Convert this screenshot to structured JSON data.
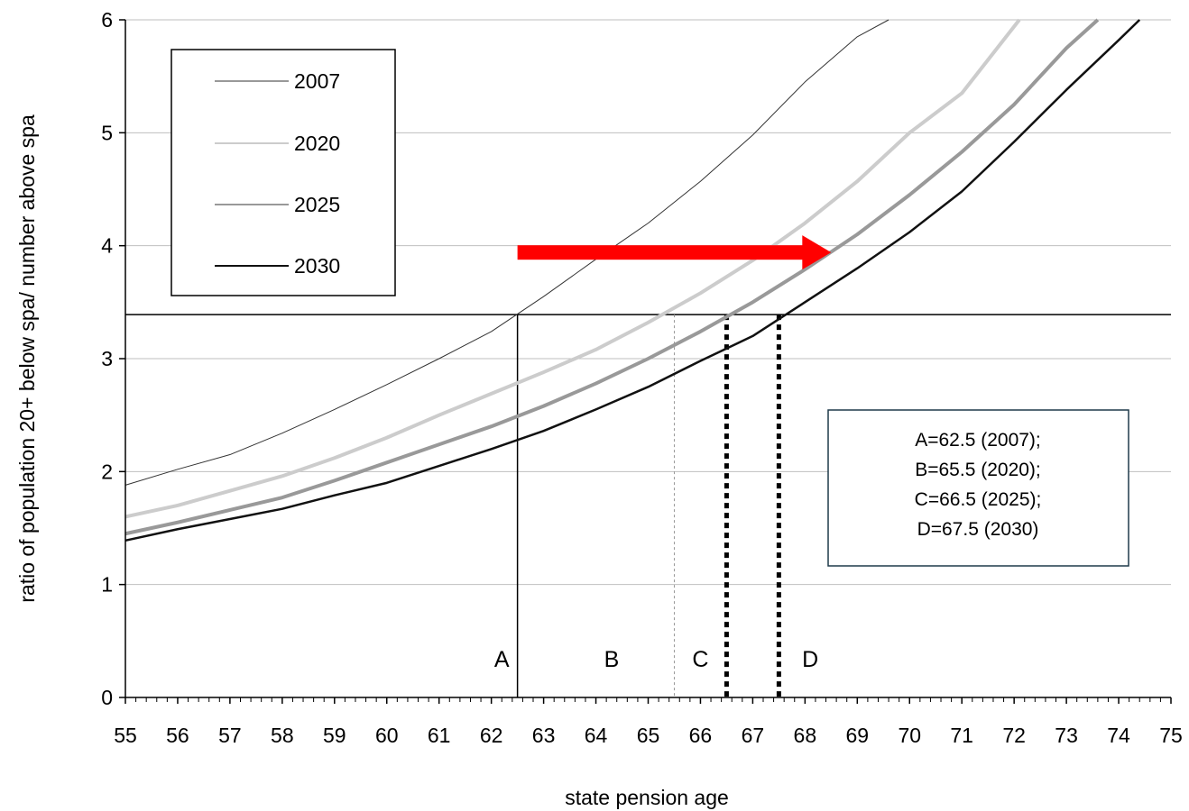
{
  "chart_data": {
    "type": "line",
    "xlabel": "state pension age",
    "ylabel": "ratio of population 20+ below spa/ number above spa",
    "xlim": [
      55,
      75
    ],
    "ylim": [
      0,
      6
    ],
    "x_ticks": [
      55,
      56,
      57,
      58,
      59,
      60,
      61,
      62,
      63,
      64,
      65,
      66,
      67,
      68,
      69,
      70,
      71,
      72,
      73,
      74,
      75
    ],
    "y_ticks": [
      0,
      1,
      2,
      3,
      4,
      5,
      6
    ],
    "grid": "horizontal",
    "legend_position": "top-left",
    "series": [
      {
        "name": "2007",
        "color": "#333333",
        "width": 1,
        "x": [
          55,
          56,
          57,
          58,
          59,
          60,
          61,
          62,
          63,
          64,
          65,
          66,
          67,
          68,
          69,
          69.6
        ],
        "y": [
          1.88,
          2.02,
          2.15,
          2.34,
          2.55,
          2.77,
          3.0,
          3.24,
          3.55,
          3.88,
          4.2,
          4.57,
          4.98,
          5.45,
          5.85,
          6.0
        ]
      },
      {
        "name": "2020",
        "color": "#cccccc",
        "width": 4,
        "x": [
          55,
          56,
          57,
          58,
          59,
          60,
          61,
          62,
          63,
          64,
          65,
          66,
          67,
          68,
          69,
          70,
          71,
          72.1
        ],
        "y": [
          1.6,
          1.7,
          1.83,
          1.96,
          2.12,
          2.3,
          2.5,
          2.69,
          2.88,
          3.08,
          3.32,
          3.58,
          3.87,
          4.2,
          4.57,
          5.0,
          5.35,
          6.0
        ]
      },
      {
        "name": "2025",
        "color": "#999999",
        "width": 4,
        "x": [
          55,
          56,
          57,
          58,
          59,
          60,
          61,
          62,
          63,
          64,
          65,
          66,
          67,
          68,
          69,
          70,
          71,
          72,
          73,
          73.6
        ],
        "y": [
          1.45,
          1.55,
          1.66,
          1.77,
          1.92,
          2.08,
          2.24,
          2.4,
          2.58,
          2.78,
          3.0,
          3.24,
          3.5,
          3.79,
          4.1,
          4.45,
          4.83,
          5.25,
          5.75,
          6.0
        ]
      },
      {
        "name": "2030",
        "color": "#111111",
        "width": 2.5,
        "x": [
          55,
          56,
          57,
          58,
          59,
          60,
          61,
          62,
          63,
          64,
          65,
          66,
          67,
          68,
          69,
          70,
          71,
          72,
          73,
          74,
          74.4
        ],
        "y": [
          1.39,
          1.49,
          1.58,
          1.67,
          1.79,
          1.9,
          2.05,
          2.2,
          2.36,
          2.55,
          2.75,
          2.98,
          3.2,
          3.5,
          3.8,
          4.12,
          4.48,
          4.92,
          5.38,
          5.82,
          6.0
        ]
      }
    ],
    "reference_lines": [
      {
        "type": "horizontal",
        "y": 3.39,
        "style": "solid",
        "color": "#000000",
        "width": 1.5
      },
      {
        "type": "vertical",
        "x": 62.5,
        "y_top": 3.39,
        "style": "solid",
        "color": "#000000",
        "width": 1.5,
        "label": "A",
        "label_x": 62.2
      },
      {
        "type": "vertical",
        "x": 65.5,
        "y_top": 3.39,
        "style": "dotted-thin",
        "color": "#999999",
        "width": 1,
        "label": "B",
        "label_x": 64.3
      },
      {
        "type": "vertical",
        "x": 66.5,
        "y_top": 3.39,
        "style": "dotted-thick",
        "color": "#000000",
        "width": 5,
        "label": "C",
        "label_x": 66.0
      },
      {
        "type": "vertical",
        "x": 67.5,
        "y_top": 3.39,
        "style": "dotted-thick",
        "color": "#000000",
        "width": 5,
        "label": "D",
        "label_x": 68.1
      }
    ],
    "arrow": {
      "x_start": 62.5,
      "x_end": 68.5,
      "y": 3.94,
      "color": "#ff0000"
    },
    "annotation": [
      "A=62.5 (2007);",
      "B=65.5 (2020);",
      "C=66.5 (2025);",
      "D=67.5 (2030)"
    ]
  }
}
